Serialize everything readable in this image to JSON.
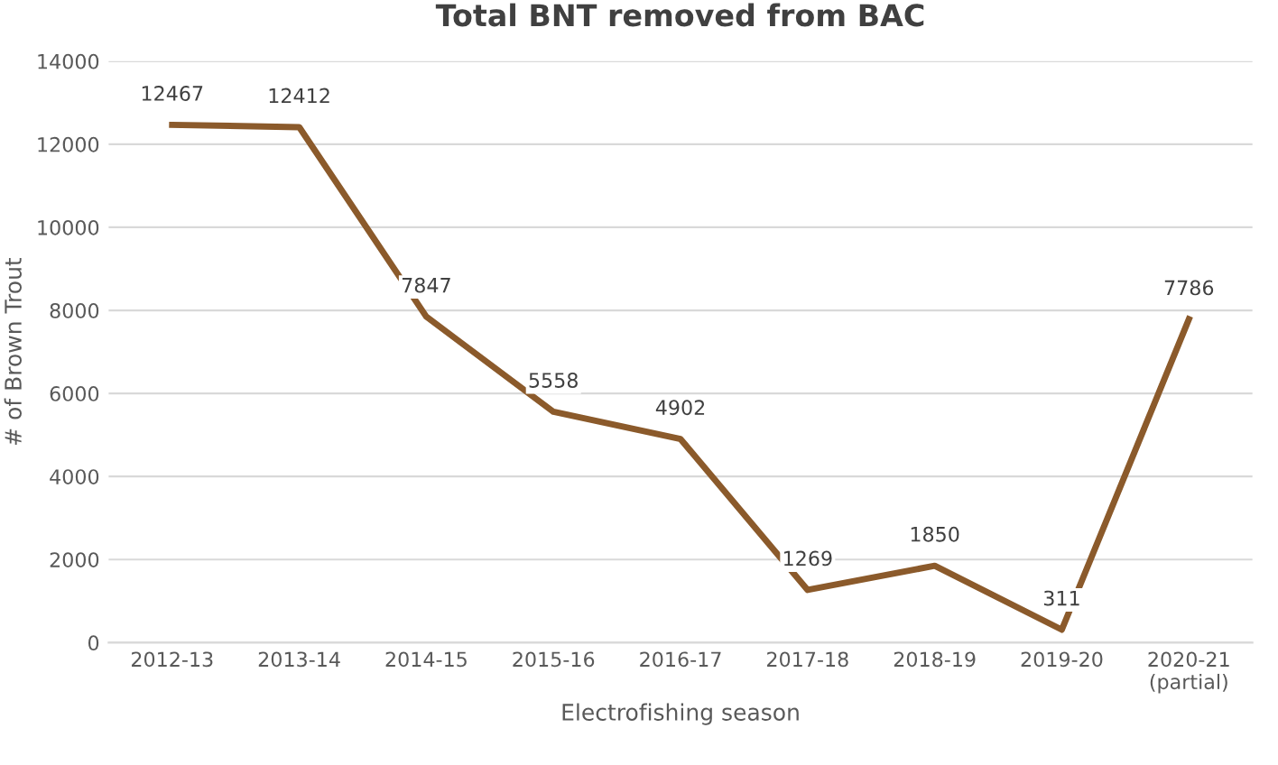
{
  "chart_data": {
    "type": "line",
    "title": "Total BNT removed from BAC",
    "xlabel": "Electrofishing season",
    "ylabel": "# of Brown Trout",
    "categories": [
      "2012-13",
      "2013-14",
      "2014-15",
      "2015-16",
      "2016-17",
      "2017-18",
      "2018-19",
      "2019-20",
      "2020-21\n(partial)"
    ],
    "series": [
      {
        "color": "#8b5a2b",
        "values": [
          12467,
          12412,
          7847,
          5558,
          4902,
          1269,
          1850,
          311,
          7786
        ]
      }
    ],
    "ylim": [
      0,
      14000
    ],
    "yticks": [
      0,
      2000,
      4000,
      6000,
      8000,
      10000,
      12000,
      14000
    ],
    "grid": "y",
    "data_labels": true,
    "marker": "none",
    "line_style": "solid"
  }
}
